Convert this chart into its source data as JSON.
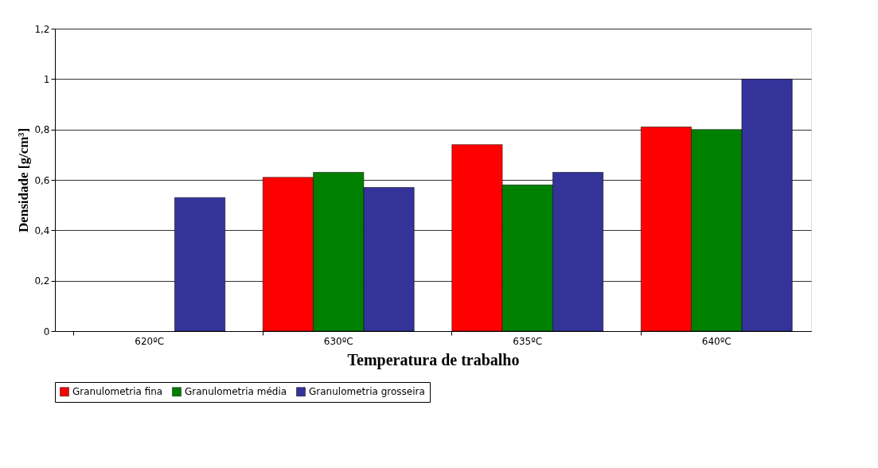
{
  "chart_data": {
    "type": "bar",
    "xlabel": "Temperatura de trabalho",
    "ylabel": "Densidade [g/cm³]",
    "categories": [
      "620ºC",
      "630ºC",
      "635ºC",
      "640ºC"
    ],
    "series": [
      {
        "name": "Granulometria fina",
        "color": "#ff0000",
        "values": [
          null,
          0.61,
          0.74,
          0.81
        ]
      },
      {
        "name": "Granulometria média",
        "color": "#008000",
        "values": [
          null,
          0.63,
          0.58,
          0.8
        ]
      },
      {
        "name": "Granulometria grosseira",
        "color": "#333399",
        "values": [
          0.53,
          0.57,
          0.63,
          1.0
        ]
      }
    ],
    "ylim": [
      0,
      1.2
    ],
    "yticks": [
      {
        "value": 0,
        "label": "0"
      },
      {
        "value": 0.2,
        "label": "0,2"
      },
      {
        "value": 0.4,
        "label": "0,4"
      },
      {
        "value": 0.6,
        "label": "0,6"
      },
      {
        "value": 0.8,
        "label": "0,8"
      },
      {
        "value": 1,
        "label": "1"
      },
      {
        "value": 1.2,
        "label": "1,2"
      }
    ],
    "grid": "y",
    "legend": "bottom"
  }
}
